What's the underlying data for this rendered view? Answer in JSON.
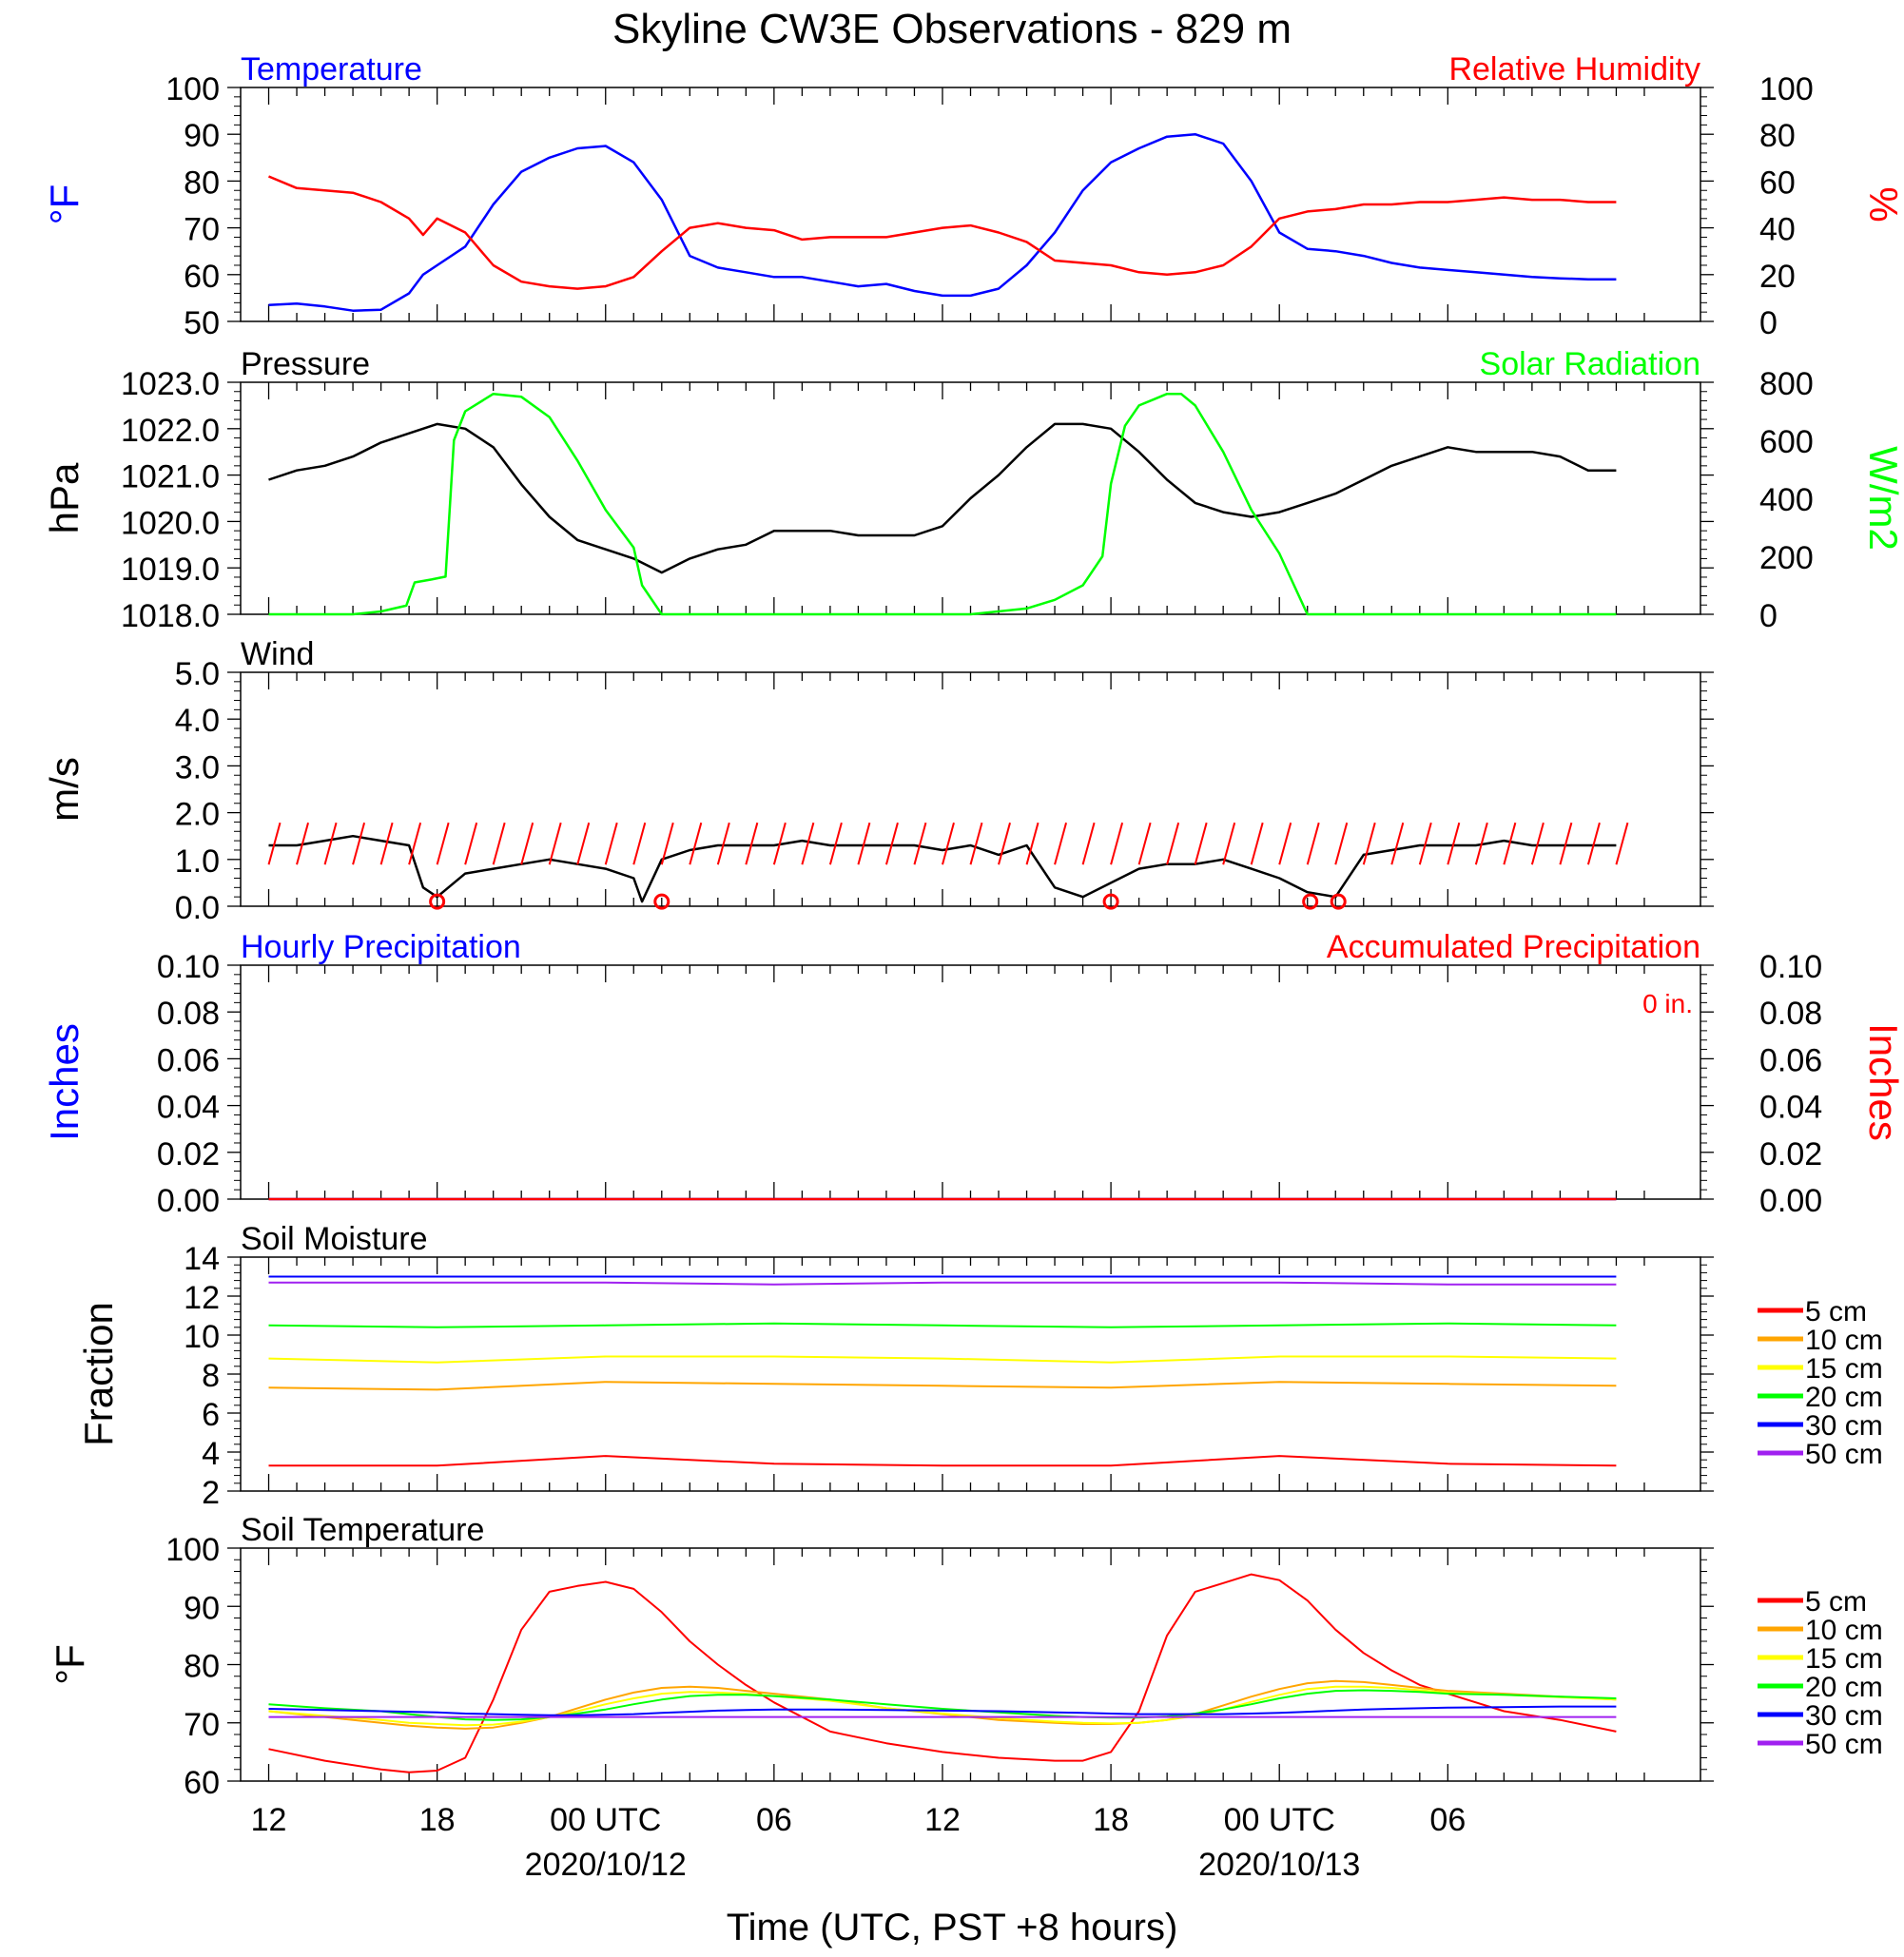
{
  "title": "Skyline CW3E Observations - 829 m",
  "xaxis": {
    "label": "Time (UTC, PST +8 hours)",
    "tick_labels": [
      "12",
      "18",
      "00 UTC",
      "06",
      "12",
      "18",
      "00 UTC",
      "06"
    ],
    "date_labels": [
      "2020/10/12",
      "2020/10/13"
    ]
  },
  "colors": {
    "blue": "#0000ff",
    "red": "#ff0000",
    "green": "#00ff00",
    "black": "#000000",
    "orange": "#ffa500",
    "yellow": "#ffff00",
    "purple": "#a020f0"
  },
  "chart_data": [
    {
      "type": "line",
      "title_left": "Temperature",
      "title_right": "Relative Humidity",
      "ylabel_left": "°F",
      "ylabel_right": "%",
      "ylim_left": [
        50,
        100
      ],
      "ylim_right": [
        0,
        100
      ],
      "yticks_left": [
        "100",
        "90",
        "80",
        "70",
        "60",
        "50"
      ],
      "yticks_right": [
        "100",
        "80",
        "60",
        "40",
        "20",
        "0"
      ],
      "x_hours": [
        0,
        1,
        2,
        3,
        4,
        5,
        5.5,
        6,
        7,
        8,
        9,
        10,
        11,
        12,
        13,
        14,
        15,
        16,
        17,
        18,
        19,
        20,
        21,
        22,
        23,
        24,
        25,
        26,
        27,
        28,
        29,
        30,
        31,
        32,
        33,
        34,
        35,
        36,
        37,
        38,
        39,
        40,
        41,
        42,
        43,
        44,
        45,
        46,
        47,
        48
      ],
      "series": [
        {
          "name": "Temperature",
          "axis": "left",
          "color": "#0000ff",
          "values": [
            53.5,
            53.8,
            53.2,
            52.3,
            52.5,
            56,
            60,
            62,
            66,
            75,
            82,
            85,
            87,
            87.5,
            84,
            76,
            64,
            61.5,
            60.5,
            59.5,
            59.5,
            58.5,
            57.5,
            58,
            56.5,
            55.5,
            55.5,
            57,
            62,
            69,
            78,
            84,
            87,
            89.5,
            90,
            88,
            80,
            69,
            65.5,
            65,
            64,
            62.5,
            61.5,
            61,
            60.5,
            60,
            59.5,
            59.2,
            59,
            59
          ]
        },
        {
          "name": "Relative Humidity",
          "axis": "right",
          "color": "#ff0000",
          "values": [
            62,
            57,
            56,
            55,
            51,
            44,
            37,
            44,
            38,
            24,
            17,
            15,
            14,
            15,
            19,
            30,
            40,
            42,
            40,
            39,
            35,
            36,
            36,
            36,
            38,
            40,
            41,
            38,
            34,
            26,
            25,
            24,
            21,
            20,
            21,
            24,
            32,
            44,
            47,
            48,
            50,
            50,
            51,
            51,
            52,
            53,
            52,
            52,
            51,
            51
          ]
        }
      ]
    },
    {
      "type": "line",
      "title_left": "Pressure",
      "title_right": "Solar Radiation",
      "ylabel_left": "hPa",
      "ylabel_right": "W/m2",
      "ylim_left": [
        1018,
        1023
      ],
      "ylim_right": [
        0,
        800
      ],
      "yticks_left": [
        "1023.0",
        "1022.0",
        "1021.0",
        "1020.0",
        "1019.0",
        "1018.0"
      ],
      "yticks_right": [
        "800",
        "600",
        "400",
        "200",
        "0"
      ],
      "x_hours": [
        0,
        1,
        2,
        3,
        4,
        5,
        6,
        7,
        8,
        9,
        10,
        11,
        12,
        13,
        14,
        15,
        16,
        17,
        18,
        19,
        20,
        21,
        22,
        23,
        24,
        25,
        26,
        27,
        28,
        29,
        30,
        31,
        32,
        33,
        34,
        35,
        36,
        37,
        38,
        39,
        40,
        41,
        42,
        43,
        44,
        45,
        46,
        47,
        48
      ],
      "series": [
        {
          "name": "Pressure",
          "axis": "left",
          "color": "#000000",
          "values": [
            1020.9,
            1021.1,
            1021.2,
            1021.4,
            1021.7,
            1021.9,
            1022.1,
            1022.0,
            1021.6,
            1020.8,
            1020.1,
            1019.6,
            1019.4,
            1019.2,
            1018.9,
            1019.2,
            1019.4,
            1019.5,
            1019.8,
            1019.8,
            1019.8,
            1019.7,
            1019.7,
            1019.7,
            1019.9,
            1020.5,
            1021.0,
            1021.6,
            1022.1,
            1022.1,
            1022.0,
            1021.5,
            1020.9,
            1020.4,
            1020.2,
            1020.1,
            1020.2,
            1020.4,
            1020.6,
            1020.9,
            1021.2,
            1021.4,
            1021.6,
            1021.5,
            1021.5,
            1021.5,
            1021.4,
            1021.1,
            1021.1
          ]
        },
        {
          "name": "Solar Radiation",
          "axis": "right",
          "color": "#00ff00",
          "x_hours": [
            0,
            3,
            4,
            4.9,
            5.2,
            5.8,
            6.3,
            6.6,
            7,
            8,
            9,
            10,
            11,
            12,
            13,
            13.3,
            14,
            15,
            20,
            25,
            27,
            28,
            29,
            29.7,
            30,
            30.5,
            31,
            31.5,
            32,
            32.5,
            33,
            34,
            35,
            36,
            37,
            40,
            48
          ],
          "values": [
            0,
            0,
            10,
            30,
            110,
            120,
            130,
            600,
            700,
            760,
            750,
            680,
            530,
            360,
            230,
            100,
            0,
            0,
            0,
            0,
            20,
            50,
            100,
            200,
            450,
            650,
            720,
            740,
            760,
            760,
            720,
            560,
            360,
            210,
            0,
            0,
            0
          ]
        }
      ]
    },
    {
      "type": "line",
      "title_left": "Wind",
      "ylabel_left": "m/s",
      "ylim_left": [
        0,
        5
      ],
      "yticks_left": [
        "5.0",
        "4.0",
        "3.0",
        "2.0",
        "1.0",
        "0.0"
      ],
      "x_hours": [
        0,
        1,
        2,
        3,
        4,
        5,
        5.5,
        6,
        7,
        8,
        9,
        10,
        11,
        12,
        13,
        13.3,
        14,
        15,
        16,
        17,
        18,
        19,
        20,
        21,
        22,
        23,
        24,
        25,
        26,
        27,
        28,
        29,
        30,
        31,
        32,
        33,
        34,
        35,
        36,
        37,
        38,
        39,
        40,
        41,
        42,
        43,
        44,
        45,
        46,
        47,
        48
      ],
      "series": [
        {
          "name": "Wind speed",
          "color": "#000000",
          "values": [
            1.3,
            1.3,
            1.4,
            1.5,
            1.4,
            1.3,
            0.4,
            0.2,
            0.7,
            0.8,
            0.9,
            1.0,
            0.9,
            0.8,
            0.6,
            0.1,
            1.0,
            1.2,
            1.3,
            1.3,
            1.3,
            1.4,
            1.3,
            1.3,
            1.3,
            1.3,
            1.2,
            1.3,
            1.1,
            1.3,
            0.4,
            0.2,
            0.5,
            0.8,
            0.9,
            0.9,
            1.0,
            0.8,
            0.6,
            0.3,
            0.2,
            1.1,
            1.2,
            1.3,
            1.3,
            1.3,
            1.4,
            1.3,
            1.3,
            1.3,
            1.3
          ]
        }
      ],
      "calm_markers_hours": [
        6,
        14,
        30,
        37.1,
        38.1
      ]
    },
    {
      "type": "line",
      "title_left": "Hourly Precipitation",
      "title_right": "Accumulated Precipitation",
      "annotation": "0 in.",
      "ylabel_left": "Inches",
      "ylabel_right": "Inches",
      "ylim_left": [
        0,
        0.1
      ],
      "ylim_right": [
        0,
        0.1
      ],
      "yticks_left": [
        "0.10",
        "0.08",
        "0.06",
        "0.04",
        "0.02",
        "0.00"
      ],
      "yticks_right": [
        "0.10",
        "0.08",
        "0.06",
        "0.04",
        "0.02",
        "0.00"
      ],
      "x_hours": [
        0,
        48
      ],
      "series": [
        {
          "name": "Hourly Precipitation",
          "axis": "left",
          "color": "#0000ff",
          "values": [
            0,
            0
          ]
        },
        {
          "name": "Accumulated Precipitation",
          "axis": "right",
          "color": "#ff0000",
          "values": [
            0,
            0
          ]
        }
      ]
    },
    {
      "type": "line",
      "title_left": "Soil Moisture",
      "ylabel_left": "Fraction",
      "ylim_left": [
        2,
        14
      ],
      "yticks_left": [
        "14",
        "12",
        "10",
        "8",
        "6",
        "4",
        "2"
      ],
      "legend": [
        "5 cm",
        "10 cm",
        "15 cm",
        "20 cm",
        "30 cm",
        "50 cm"
      ],
      "x_hours": [
        0,
        6,
        12,
        18,
        24,
        30,
        36,
        42,
        48
      ],
      "series": [
        {
          "name": "5 cm",
          "color": "#ff0000",
          "values": [
            3.3,
            3.3,
            3.8,
            3.4,
            3.3,
            3.3,
            3.8,
            3.4,
            3.3
          ]
        },
        {
          "name": "10 cm",
          "color": "#ffa500",
          "values": [
            7.3,
            7.2,
            7.6,
            7.5,
            7.4,
            7.3,
            7.6,
            7.5,
            7.4
          ]
        },
        {
          "name": "15 cm",
          "color": "#ffff00",
          "values": [
            8.8,
            8.6,
            8.9,
            8.9,
            8.8,
            8.6,
            8.9,
            8.9,
            8.8
          ]
        },
        {
          "name": "20 cm",
          "color": "#00ff00",
          "values": [
            10.5,
            10.4,
            10.5,
            10.6,
            10.5,
            10.4,
            10.5,
            10.6,
            10.5
          ]
        },
        {
          "name": "30 cm",
          "color": "#0000ff",
          "values": [
            13.0,
            13.0,
            13.0,
            13.0,
            13.0,
            13.0,
            13.0,
            13.0,
            13.0
          ]
        },
        {
          "name": "50 cm",
          "color": "#a020f0",
          "values": [
            12.7,
            12.7,
            12.7,
            12.6,
            12.7,
            12.7,
            12.7,
            12.6,
            12.6
          ]
        }
      ]
    },
    {
      "type": "line",
      "title_left": "Soil Temperature",
      "ylabel_left": "°F",
      "ylim_left": [
        60,
        100
      ],
      "yticks_left": [
        "100",
        "90",
        "80",
        "70",
        "60"
      ],
      "legend": [
        "5 cm",
        "10 cm",
        "15 cm",
        "20 cm",
        "30 cm",
        "50 cm"
      ],
      "x_hours": [
        0,
        2,
        4,
        5,
        6,
        7,
        8,
        9,
        10,
        11,
        12,
        13,
        14,
        15,
        16,
        17,
        18,
        20,
        22,
        24,
        26,
        28,
        29,
        30,
        31,
        32,
        33,
        34,
        35,
        36,
        37,
        38,
        39,
        40,
        41,
        42,
        44,
        46,
        48
      ],
      "series": [
        {
          "name": "5 cm",
          "color": "#ff0000",
          "values": [
            65.5,
            63.5,
            62,
            61.5,
            61.8,
            64,
            74,
            86,
            92.5,
            93.5,
            94.2,
            93,
            89,
            84,
            80,
            76.5,
            73.5,
            68.5,
            66.5,
            65,
            64,
            63.5,
            63.5,
            65,
            72,
            85,
            92.5,
            94,
            95.5,
            94.5,
            91,
            86,
            82,
            79,
            76.5,
            75,
            72,
            70.5,
            68.5
          ]
        },
        {
          "name": "10 cm",
          "color": "#ffa500",
          "values": [
            72,
            71,
            70,
            69.5,
            69.2,
            69,
            69.2,
            70,
            71,
            72.5,
            74,
            75.2,
            76,
            76.2,
            76,
            75.5,
            75,
            74,
            72.5,
            71.5,
            70.5,
            70,
            69.8,
            69.8,
            70,
            70.5,
            71.5,
            73,
            74.5,
            75.8,
            76.8,
            77.2,
            77,
            76.5,
            76,
            75.5,
            75,
            74.5,
            74
          ]
        },
        {
          "name": "15 cm",
          "color": "#ffff00",
          "values": [
            72,
            71.2,
            70.5,
            70,
            69.8,
            69.6,
            69.7,
            70.2,
            71,
            72,
            73.2,
            74.2,
            75,
            75.3,
            75.2,
            75,
            74.6,
            73.8,
            72.5,
            71.6,
            70.8,
            70.2,
            70,
            69.9,
            70,
            70.5,
            71.2,
            72.3,
            73.6,
            74.8,
            75.8,
            76.2,
            76.2,
            76,
            75.6,
            75.2,
            74.8,
            74.4,
            74
          ]
        },
        {
          "name": "20 cm",
          "color": "#00ff00",
          "values": [
            73.2,
            72.5,
            72,
            71.5,
            71,
            70.6,
            70.5,
            70.6,
            71,
            71.6,
            72.3,
            73.2,
            74,
            74.6,
            74.8,
            74.8,
            74.6,
            74,
            73.2,
            72.4,
            71.8,
            71.2,
            71,
            70.9,
            70.9,
            71.1,
            71.6,
            72.3,
            73.2,
            74.2,
            75,
            75.5,
            75.6,
            75.5,
            75.3,
            75,
            74.8,
            74.5,
            74.2
          ]
        },
        {
          "name": "30 cm",
          "color": "#0000ff",
          "values": [
            72.4,
            72.2,
            72,
            71.9,
            71.8,
            71.6,
            71.5,
            71.4,
            71.3,
            71.3,
            71.4,
            71.5,
            71.7,
            71.9,
            72.1,
            72.2,
            72.3,
            72.3,
            72.2,
            72.1,
            72,
            71.8,
            71.7,
            71.6,
            71.5,
            71.5,
            71.5,
            71.5,
            71.6,
            71.7,
            71.9,
            72.1,
            72.3,
            72.4,
            72.5,
            72.6,
            72.7,
            72.8,
            72.8
          ]
        },
        {
          "name": "50 cm",
          "color": "#a020f0",
          "values": [
            71,
            71,
            71,
            71,
            71,
            71,
            71,
            71,
            71,
            71,
            71,
            71,
            71,
            71,
            71,
            71,
            71,
            71,
            71,
            71,
            71,
            71,
            71,
            71,
            71,
            71,
            71,
            71,
            71,
            71,
            71,
            71,
            71,
            71,
            71,
            71,
            71,
            71,
            71
          ]
        }
      ]
    }
  ]
}
